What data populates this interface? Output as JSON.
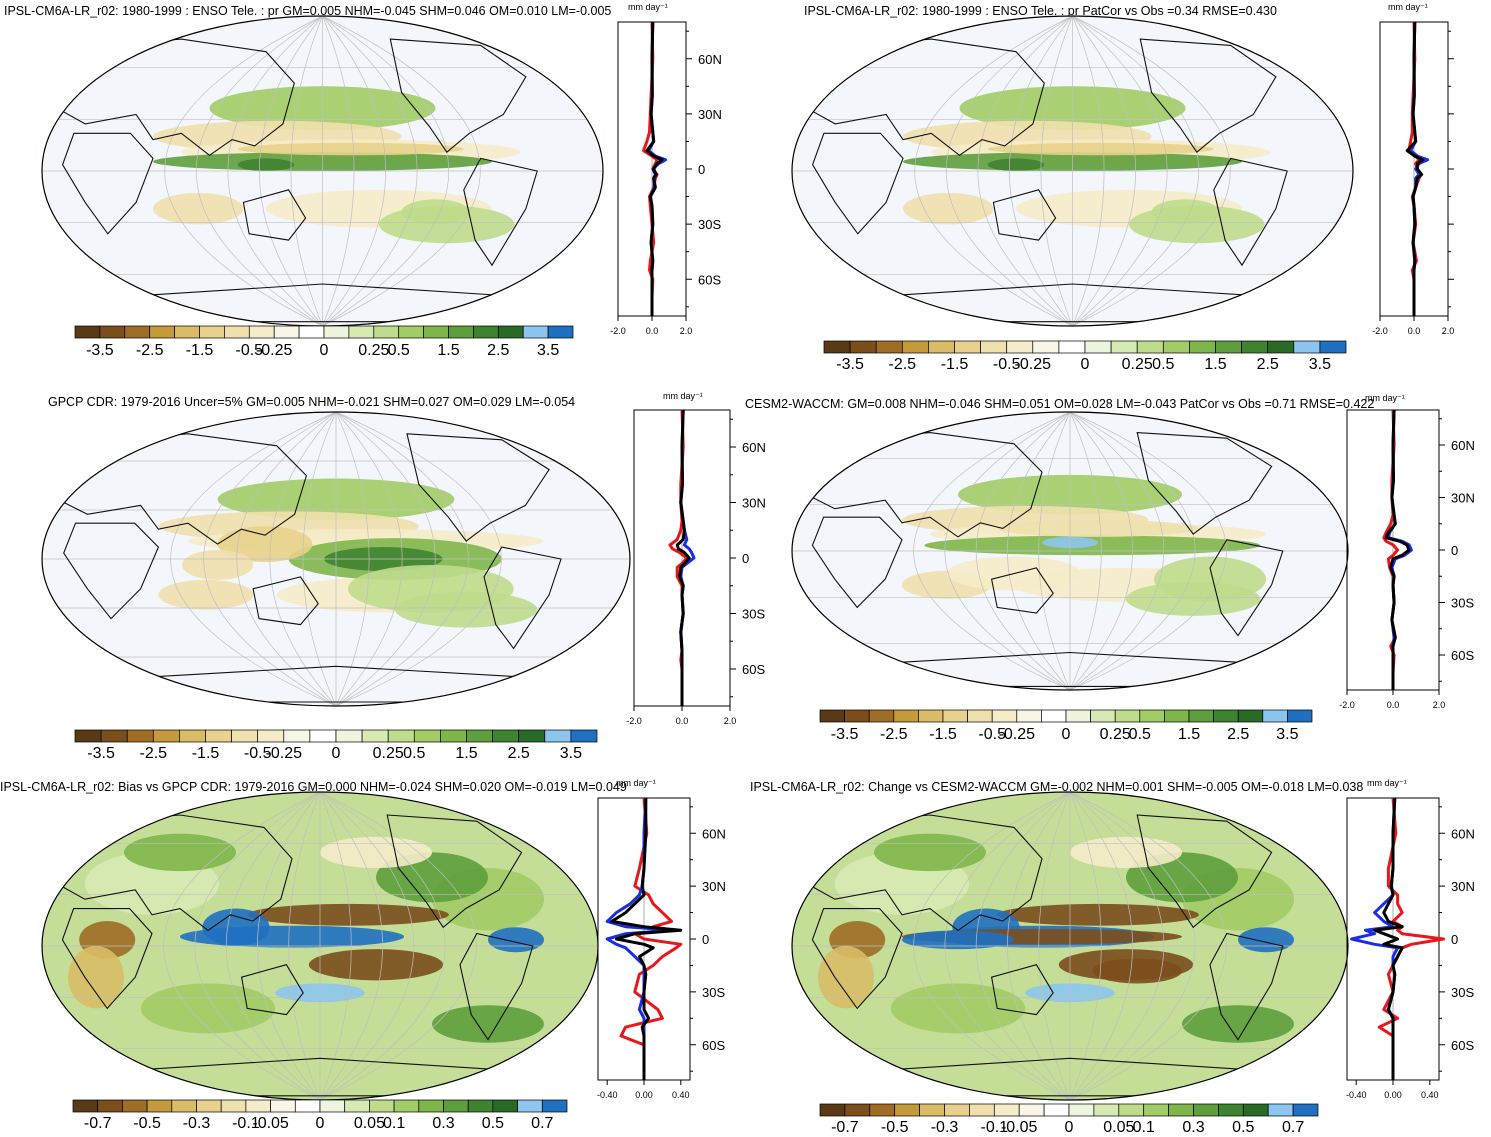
{
  "units_label": "mm day⁻¹",
  "lat_ticks": [
    "60N",
    "30N",
    "0",
    "30S",
    "60S"
  ],
  "palette": [
    "#5a3a16",
    "#7b4e1c",
    "#9f6d26",
    "#c49a3a",
    "#d9bc66",
    "#e8d18c",
    "#efe0ad",
    "#f5ecc9",
    "#f9f6e8",
    "#ffffff",
    "#eef5df",
    "#d7eab4",
    "#bfdc8c",
    "#a2cc65",
    "#7fb64a",
    "#5e9e3c",
    "#3f8331",
    "#2a6a27",
    "#8cc5ee",
    "#1f70c1"
  ],
  "line_colors": {
    "black": "#000000",
    "red": "#e8171a",
    "blue": "#1a2de0"
  },
  "map_colors": {
    "ocean_bg": "#f3f6fb",
    "coast": "#111111",
    "grid": "#bfbfbf"
  },
  "chart_data": [
    {
      "type": "heatmap",
      "title": "IPSL-CM6A-LR_r02: 1980-1999 : ENSO Tele. : pr GM=0.005 NHM=-0.045 SHM=0.046 OM=0.010 LM=-0.005",
      "colorbar_labels": [
        "-3.5",
        "-2.5",
        "-1.5",
        "-0.5",
        "-0.25",
        "0",
        "0.25",
        "0.5",
        "1.5",
        "2.5",
        "3.5"
      ],
      "zonal_mean": {
        "type": "line",
        "xlim": [
          -2.0,
          2.0
        ],
        "x_tick_labels": [
          "-2.0",
          "0.0",
          "2.0"
        ],
        "show_lat_labels": true,
        "lat": [
          80,
          60,
          40,
          30,
          20,
          15,
          10,
          7,
          5,
          3,
          0,
          -3,
          -5,
          -10,
          -15,
          -20,
          -30,
          -40,
          -50,
          -55,
          -60,
          -70,
          -80
        ],
        "series": [
          {
            "color": "black",
            "values": [
              0.05,
              0.0,
              0.02,
              -0.05,
              0.05,
              0.1,
              -0.3,
              0.1,
              0.6,
              0.3,
              0.1,
              0.25,
              0.1,
              0.2,
              -0.1,
              0.0,
              0.05,
              -0.05,
              0.05,
              0.0,
              0.0,
              0.0,
              0.0
            ]
          },
          {
            "color": "red",
            "values": [
              0.0,
              0.05,
              -0.05,
              -0.1,
              -0.15,
              -0.3,
              -0.5,
              0.0,
              0.3,
              0.2,
              0.05,
              0.3,
              0.2,
              0.1,
              -0.15,
              -0.1,
              0.0,
              0.1,
              -0.1,
              -0.15,
              0.05,
              0.0,
              0.0
            ]
          },
          {
            "color": "blue",
            "values": [
              0.05,
              0.0,
              0.02,
              -0.05,
              0.05,
              0.1,
              -0.2,
              0.2,
              0.8,
              0.4,
              0.05,
              0.2,
              0.1,
              0.15,
              -0.1,
              0.0,
              0.05,
              -0.05,
              0.05,
              0.0,
              0.0,
              0.0,
              0.0
            ]
          }
        ]
      }
    },
    {
      "type": "heatmap",
      "title": "IPSL-CM6A-LR_r02: 1980-1999 : ENSO Tele. : pr PatCor vs Obs =0.34 RMSE=0.430",
      "colorbar_labels": [
        "-3.5",
        "-2.5",
        "-1.5",
        "-0.5",
        "-0.25",
        "0",
        "0.25",
        "0.5",
        "1.5",
        "2.5",
        "3.5"
      ],
      "zonal_mean": {
        "type": "line",
        "xlim": [
          -2.0,
          2.0
        ],
        "x_tick_labels": [
          "-2.0",
          "0.0",
          "2.0"
        ],
        "show_lat_labels": false,
        "lat": [
          80,
          60,
          40,
          30,
          20,
          15,
          10,
          7,
          5,
          3,
          0,
          -3,
          -5,
          -10,
          -15,
          -20,
          -30,
          -40,
          -50,
          -55,
          -60,
          -70,
          -80
        ],
        "series": [
          {
            "color": "black",
            "values": [
              0.05,
              0.0,
              0.02,
              -0.05,
              0.05,
              0.1,
              -0.4,
              0.05,
              0.5,
              0.2,
              0.2,
              0.45,
              0.2,
              0.1,
              -0.05,
              0.0,
              0.05,
              -0.05,
              0.05,
              0.0,
              0.0,
              0.0,
              0.0
            ]
          },
          {
            "color": "red",
            "values": [
              0.0,
              0.05,
              -0.05,
              -0.1,
              -0.1,
              -0.2,
              -0.3,
              0.1,
              0.3,
              0.1,
              0.2,
              0.4,
              0.3,
              0.1,
              -0.1,
              0.0,
              0.1,
              -0.05,
              0.15,
              -0.1,
              0.0,
              0.0,
              0.0
            ]
          },
          {
            "color": "blue",
            "values": [
              0.05,
              0.0,
              0.02,
              -0.05,
              0.05,
              0.1,
              -0.2,
              0.2,
              0.8,
              0.3,
              0.1,
              0.3,
              0.1,
              0.1,
              -0.05,
              0.0,
              0.05,
              -0.05,
              0.05,
              0.0,
              0.0,
              0.0,
              0.0
            ]
          }
        ]
      }
    },
    {
      "type": "heatmap",
      "title": "GPCP CDR: 1979-2016 Uncer=5% GM=0.005 NHM=-0.021 SHM=0.027 OM=0.029 LM=-0.054",
      "colorbar_labels": [
        "-3.5",
        "-2.5",
        "-1.5",
        "-0.5",
        "-0.25",
        "0",
        "0.25",
        "0.5",
        "1.5",
        "2.5",
        "3.5"
      ],
      "zonal_mean": {
        "type": "line",
        "xlim": [
          -2.0,
          2.0
        ],
        "x_tick_labels": [
          "-2.0",
          "0.0",
          "2.0"
        ],
        "show_lat_labels": true,
        "lat": [
          80,
          60,
          40,
          30,
          20,
          15,
          10,
          7,
          5,
          3,
          0,
          -3,
          -5,
          -10,
          -15,
          -20,
          -30,
          -40,
          -50,
          -55,
          -60,
          -70,
          -80
        ],
        "series": [
          {
            "color": "black",
            "values": [
              0.05,
              0.0,
              0.02,
              -0.05,
              0.05,
              0.1,
              0.05,
              -0.2,
              -0.15,
              0.1,
              0.3,
              0.1,
              -0.05,
              -0.1,
              0.05,
              0.0,
              0.05,
              -0.05,
              0.0,
              0.0,
              0.0,
              0.0,
              0.0
            ]
          },
          {
            "color": "red",
            "values": [
              0.0,
              0.05,
              -0.05,
              -0.05,
              0.0,
              -0.05,
              -0.2,
              -0.5,
              -0.4,
              -0.1,
              0.2,
              0.0,
              -0.2,
              -0.2,
              0.0,
              0.0,
              0.05,
              -0.05,
              0.0,
              -0.05,
              0.0,
              0.0,
              0.0
            ]
          },
          {
            "color": "blue",
            "values": [
              0.05,
              0.0,
              0.02,
              -0.05,
              0.05,
              0.1,
              0.2,
              0.1,
              0.3,
              0.4,
              0.5,
              0.2,
              0.0,
              -0.05,
              0.05,
              0.0,
              0.05,
              -0.05,
              0.0,
              0.0,
              0.0,
              0.0,
              0.0
            ]
          }
        ]
      }
    },
    {
      "type": "heatmap",
      "title": "CESM2-WACCM: GM=0.008 NHM=-0.046 SHM=0.051 OM=0.028 LM=-0.043 PatCor vs Obs =0.71 RMSE=0.422",
      "colorbar_labels": [
        "-3.5",
        "-2.5",
        "-1.5",
        "-0.5",
        "-0.25",
        "0",
        "0.25",
        "0.5",
        "1.5",
        "2.5",
        "3.5"
      ],
      "zonal_mean": {
        "type": "line",
        "xlim": [
          -2.0,
          2.0
        ],
        "x_tick_labels": [
          "-2.0",
          "0.0",
          "2.0"
        ],
        "show_lat_labels": true,
        "lat": [
          80,
          60,
          40,
          30,
          20,
          15,
          10,
          7,
          5,
          3,
          0,
          -3,
          -5,
          -10,
          -15,
          -20,
          -30,
          -40,
          -50,
          -55,
          -60,
          -70,
          -80
        ],
        "series": [
          {
            "color": "black",
            "values": [
              0.05,
              0.0,
              0.02,
              -0.05,
              0.05,
              0.1,
              -0.2,
              -0.3,
              0.3,
              0.6,
              0.7,
              0.4,
              0.0,
              -0.1,
              0.05,
              0.0,
              0.05,
              -0.05,
              0.1,
              0.0,
              0.0,
              0.0,
              0.0
            ]
          },
          {
            "color": "red",
            "values": [
              0.0,
              0.05,
              -0.05,
              -0.05,
              0.0,
              -0.1,
              -0.3,
              -0.4,
              -0.3,
              0.0,
              0.2,
              0.0,
              -0.2,
              -0.15,
              0.0,
              0.0,
              0.05,
              -0.05,
              0.1,
              -0.1,
              0.05,
              0.0,
              0.0
            ]
          },
          {
            "color": "blue",
            "values": [
              0.05,
              0.0,
              0.02,
              -0.05,
              0.05,
              0.1,
              -0.15,
              -0.2,
              0.4,
              0.7,
              0.8,
              0.5,
              0.1,
              -0.05,
              0.05,
              0.0,
              0.05,
              -0.05,
              0.05,
              0.0,
              0.0,
              0.0,
              0.0
            ]
          }
        ]
      }
    },
    {
      "type": "heatmap",
      "title": "IPSL-CM6A-LR_r02: Bias vs GPCP CDR: 1979-2016 GM=0.000 NHM=-0.024 SHM=0.020 OM=-0.019 LM=0.049",
      "colorbar_labels": [
        "-0.7",
        "-0.5",
        "-0.3",
        "-0.1",
        "-0.05",
        "0",
        "0.05",
        "0.1",
        "0.3",
        "0.5",
        "0.7"
      ],
      "zonal_mean": {
        "type": "line",
        "xlim": [
          -0.5,
          0.5
        ],
        "x_tick_labels": [
          "-0.40",
          "0.00",
          "0.40"
        ],
        "show_lat_labels": true,
        "lat": [
          80,
          60,
          40,
          30,
          25,
          20,
          15,
          10,
          7,
          5,
          3,
          0,
          -3,
          -5,
          -10,
          -15,
          -20,
          -30,
          -40,
          -45,
          -50,
          -55,
          -60,
          -70,
          -80
        ],
        "series": [
          {
            "color": "black",
            "values": [
              0.02,
              0.02,
              0.0,
              -0.02,
              0.0,
              -0.1,
              -0.2,
              -0.35,
              0.0,
              0.4,
              -0.1,
              -0.3,
              0.0,
              0.1,
              -0.05,
              0.0,
              0.02,
              0.0,
              0.0,
              0.05,
              -0.02,
              0.0,
              0.0,
              0.0,
              0.0
            ]
          },
          {
            "color": "red",
            "values": [
              0.0,
              0.03,
              -0.05,
              -0.1,
              0.05,
              0.1,
              0.2,
              0.3,
              0.1,
              0.3,
              -0.1,
              0.0,
              0.4,
              0.35,
              0.2,
              0.1,
              -0.05,
              -0.1,
              0.15,
              0.2,
              -0.2,
              -0.25,
              0.0,
              0.0,
              0.0
            ]
          },
          {
            "color": "blue",
            "values": [
              0.02,
              0.0,
              0.0,
              -0.02,
              -0.05,
              -0.15,
              -0.3,
              -0.4,
              -0.2,
              0.3,
              -0.2,
              -0.4,
              -0.3,
              -0.2,
              -0.1,
              0.0,
              0.0,
              0.0,
              -0.05,
              0.0,
              0.0,
              0.0,
              0.0,
              0.0,
              0.0
            ]
          }
        ]
      }
    },
    {
      "type": "heatmap",
      "title": "IPSL-CM6A-LR_r02: Change vs CESM2-WACCM GM=-0.002 NHM=0.001 SHM=-0.005 OM=-0.018 LM=0.038",
      "colorbar_labels": [
        "-0.7",
        "-0.5",
        "-0.3",
        "-0.1",
        "-0.05",
        "0",
        "0.05",
        "0.1",
        "0.3",
        "0.5",
        "0.7"
      ],
      "zonal_mean": {
        "type": "line",
        "xlim": [
          -0.5,
          0.5
        ],
        "x_tick_labels": [
          "-0.40",
          "0.00",
          "0.40"
        ],
        "show_lat_labels": true,
        "lat": [
          80,
          60,
          40,
          30,
          25,
          20,
          15,
          10,
          7,
          5,
          3,
          0,
          -3,
          -5,
          -10,
          -15,
          -20,
          -30,
          -40,
          -45,
          -50,
          -55,
          -60,
          -70,
          -80
        ],
        "series": [
          {
            "color": "black",
            "values": [
              0.02,
              0.0,
              0.0,
              -0.02,
              0.0,
              -0.05,
              -0.1,
              -0.05,
              0.1,
              -0.2,
              -0.1,
              0.05,
              -0.1,
              0.1,
              0.05,
              0.0,
              0.02,
              0.0,
              -0.05,
              0.0,
              0.0,
              0.0,
              0.0,
              0.0,
              0.0
            ]
          },
          {
            "color": "red",
            "values": [
              0.0,
              0.03,
              -0.05,
              -0.05,
              0.05,
              0.05,
              0.1,
              0.0,
              0.1,
              0.05,
              0.1,
              0.55,
              0.2,
              0.1,
              0.05,
              0.0,
              -0.05,
              0.0,
              -0.1,
              0.05,
              -0.15,
              0.0,
              0.0,
              0.0,
              0.0
            ]
          },
          {
            "color": "blue",
            "values": [
              0.02,
              0.0,
              0.0,
              -0.02,
              0.0,
              -0.1,
              -0.2,
              -0.1,
              0.0,
              -0.3,
              -0.2,
              -0.45,
              -0.2,
              0.05,
              0.0,
              0.0,
              0.02,
              0.0,
              -0.05,
              0.0,
              0.0,
              0.0,
              0.0,
              0.0,
              0.0
            ]
          }
        ]
      }
    }
  ]
}
